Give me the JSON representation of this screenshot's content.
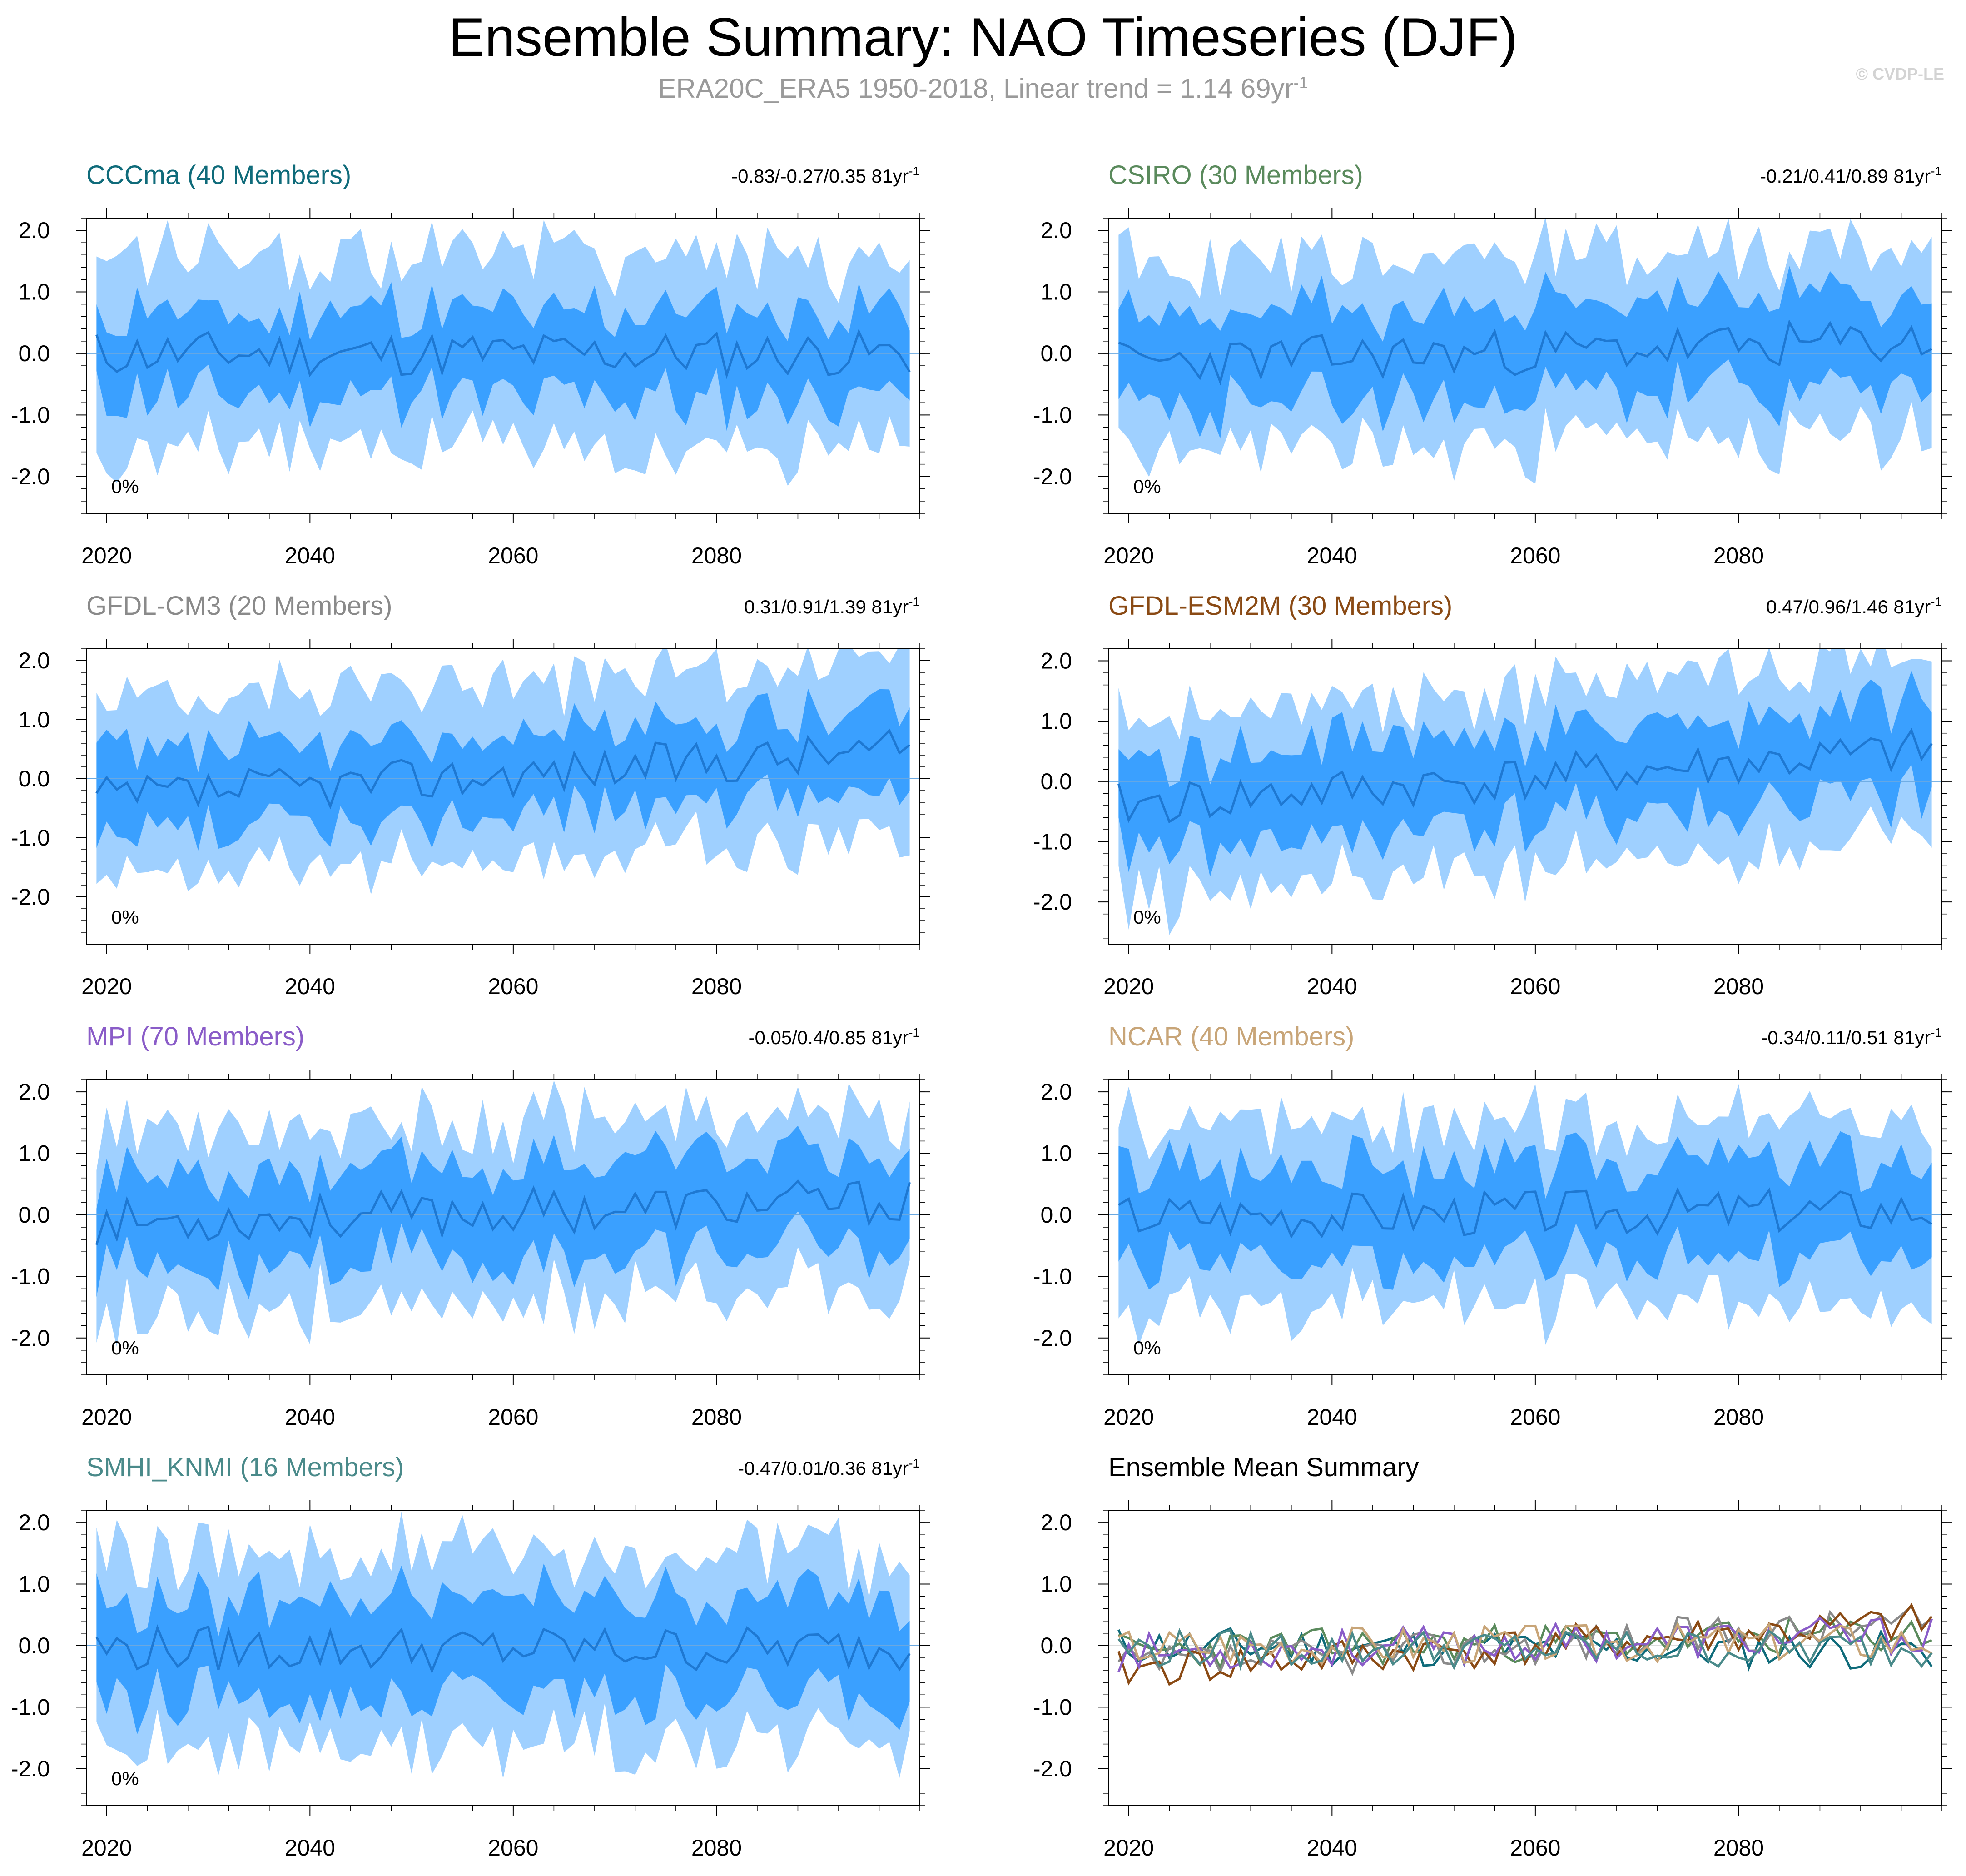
{
  "title": "Ensemble Summary: NAO Timeseries (DJF)",
  "subtitle": {
    "text": "ERA20C_ERA5 1950-2018, Linear trend = 1.14 69yr",
    "superscript": "-1"
  },
  "watermark": "© CVDP-LE",
  "colors": {
    "outer_band": "#9fd0ff",
    "inner_band": "#3aa0ff",
    "mean_line": "#1e78d2"
  },
  "chart_data": [
    {
      "type": "area",
      "title": "CCCma (40 Members)",
      "title_color": "#0f6b7a",
      "trend_label": "-0.83/-0.27/0.35 81yr",
      "trend_superscript": "-1",
      "percent_label": "0%",
      "x_range": [
        2018,
        2100
      ],
      "ylim": [
        -2.6,
        2.2
      ],
      "yticks": [
        "2.0",
        "1.0",
        "0.0",
        "-1.0",
        "-2.0"
      ],
      "xticks": [
        "2020",
        "2040",
        "2060",
        "2080"
      ],
      "mean_level": 0.0,
      "mean_trend": 0.0,
      "spread_inner": 0.7,
      "spread_outer": 1.5,
      "seed": 11
    },
    {
      "type": "area",
      "title": "CSIRO (30 Members)",
      "title_color": "#5a8a5c",
      "trend_label": "-0.21/0.41/0.89 81yr",
      "trend_superscript": "-1",
      "percent_label": "0%",
      "x_range": [
        2018,
        2100
      ],
      "ylim": [
        -2.6,
        2.2
      ],
      "yticks": [
        "2.0",
        "1.0",
        "0.0",
        "-1.0",
        "-2.0"
      ],
      "xticks": [
        "2020",
        "2040",
        "2060",
        "2080"
      ],
      "mean_level": -0.15,
      "mean_trend": 0.35,
      "spread_inner": 0.75,
      "spread_outer": 1.5,
      "seed": 23
    },
    {
      "type": "area",
      "title": "GFDL-CM3 (20 Members)",
      "title_color": "#8a8a8a",
      "trend_label": "0.31/0.91/1.39 81yr",
      "trend_superscript": "-1",
      "percent_label": "0%",
      "x_range": [
        2018,
        2100
      ],
      "ylim": [
        -2.8,
        2.2
      ],
      "yticks": [
        "2.0",
        "1.0",
        "0.0",
        "-1.0",
        "-2.0"
      ],
      "xticks": [
        "2020",
        "2040",
        "2060",
        "2080"
      ],
      "mean_level": -0.35,
      "mean_trend": 0.85,
      "spread_inner": 0.7,
      "spread_outer": 1.45,
      "seed": 37
    },
    {
      "type": "area",
      "title": "GFDL-ESM2M (30 Members)",
      "title_color": "#8a4a14",
      "trend_label": "0.47/0.96/1.46 81yr",
      "trend_superscript": "-1",
      "percent_label": "0%",
      "x_range": [
        2018,
        2100
      ],
      "ylim": [
        -2.7,
        2.2
      ],
      "yticks": [
        "2.0",
        "1.0",
        "0.0",
        "-1.0",
        "-2.0"
      ],
      "xticks": [
        "2020",
        "2040",
        "2060",
        "2080"
      ],
      "mean_level": -0.4,
      "mean_trend": 0.9,
      "spread_inner": 0.75,
      "spread_outer": 1.45,
      "seed": 41
    },
    {
      "type": "area",
      "title": "MPI (70 Members)",
      "title_color": "#8a5cc8",
      "trend_label": "-0.05/0.4/0.85 81yr",
      "trend_superscript": "-1",
      "percent_label": "0%",
      "x_range": [
        2018,
        2100
      ],
      "ylim": [
        -2.6,
        2.2
      ],
      "yticks": [
        "2.0",
        "1.0",
        "0.0",
        "-1.0",
        "-2.0"
      ],
      "xticks": [
        "2020",
        "2040",
        "2060",
        "2080"
      ],
      "mean_level": -0.12,
      "mean_trend": 0.35,
      "spread_inner": 0.75,
      "spread_outer": 1.4,
      "seed": 53
    },
    {
      "type": "area",
      "title": "NCAR (40 Members)",
      "title_color": "#c8a578",
      "trend_label": "-0.34/0.11/0.51 81yr",
      "trend_superscript": "-1",
      "percent_label": "0%",
      "x_range": [
        2018,
        2100
      ],
      "ylim": [
        -2.6,
        2.2
      ],
      "yticks": [
        "2.0",
        "1.0",
        "0.0",
        "-1.0",
        "-2.0"
      ],
      "xticks": [
        "2020",
        "2040",
        "2060",
        "2080"
      ],
      "mean_level": 0.0,
      "mean_trend": 0.1,
      "spread_inner": 0.75,
      "spread_outer": 1.45,
      "seed": 67
    },
    {
      "type": "area",
      "title": "SMHI_KNMI (16 Members)",
      "title_color": "#4a8a8a",
      "trend_label": "-0.47/0.01/0.36 81yr",
      "trend_superscript": "-1",
      "percent_label": "0%",
      "x_range": [
        2018,
        2100
      ],
      "ylim": [
        -2.6,
        2.2
      ],
      "yticks": [
        "2.0",
        "1.0",
        "0.0",
        "-1.0",
        "-2.0"
      ],
      "xticks": [
        "2020",
        "2040",
        "2060",
        "2080"
      ],
      "mean_level": -0.05,
      "mean_trend": 0.0,
      "spread_inner": 0.8,
      "spread_outer": 1.5,
      "seed": 79
    },
    {
      "type": "line",
      "title": "Ensemble Mean Summary",
      "title_color": "#000000",
      "x_range": [
        2018,
        2100
      ],
      "ylim": [
        -2.6,
        2.2
      ],
      "yticks": [
        "2.0",
        "1.0",
        "0.0",
        "-1.0",
        "-2.0"
      ],
      "xticks": [
        "2020",
        "2040",
        "2060",
        "2080"
      ],
      "series": [
        {
          "name": "CCCma",
          "color": "#0f6b7a",
          "level": 0.0,
          "trend": -0.1,
          "seed": 11
        },
        {
          "name": "CSIRO",
          "color": "#5a8a5c",
          "level": -0.1,
          "trend": 0.35,
          "seed": 23
        },
        {
          "name": "GFDL-CM3",
          "color": "#8a8a8a",
          "level": -0.35,
          "trend": 0.85,
          "seed": 37
        },
        {
          "name": "GFDL-ESM2M",
          "color": "#8a4a14",
          "level": -0.4,
          "trend": 0.9,
          "seed": 41
        },
        {
          "name": "MPI",
          "color": "#8a5cc8",
          "level": -0.12,
          "trend": 0.35,
          "seed": 53
        },
        {
          "name": "NCAR",
          "color": "#c8a578",
          "level": 0.0,
          "trend": 0.1,
          "seed": 67
        },
        {
          "name": "SMHI_KNMI",
          "color": "#4a8a8a",
          "level": -0.05,
          "trend": 0.0,
          "seed": 79
        }
      ]
    }
  ]
}
